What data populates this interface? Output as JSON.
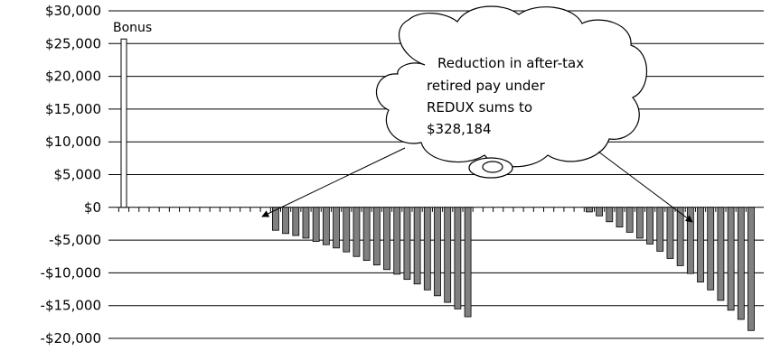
{
  "chart_data": {
    "type": "bar",
    "title": "",
    "xlabel": "",
    "ylabel": "",
    "ylim": [
      -20000,
      30000
    ],
    "y_tick_labels": [
      "$30,000",
      "$25,000",
      "$20,000",
      "$15,000",
      "$10,000",
      "$5,000",
      "$0",
      "-$5,000",
      "-$10,000",
      "-$15,000",
      "-$20,000"
    ],
    "y_tick_values": [
      30000,
      25000,
      20000,
      15000,
      10000,
      5000,
      0,
      -5000,
      -10000,
      -15000,
      -20000
    ],
    "grid": true,
    "bonus": {
      "label": "Bonus",
      "value": 25700,
      "index": 0
    },
    "values": [
      25700,
      0,
      0,
      0,
      0,
      0,
      0,
      0,
      0,
      0,
      0,
      0,
      0,
      0,
      0,
      -3500,
      -4000,
      -4300,
      -4700,
      -5200,
      -5700,
      -6200,
      -6800,
      -7500,
      -8100,
      -8800,
      -9500,
      -10200,
      -11000,
      -11700,
      -12600,
      -13500,
      -14500,
      -15500,
      -16700,
      0,
      0,
      0,
      0,
      0,
      0,
      0,
      0,
      0,
      0,
      0,
      -700,
      -1300,
      -2200,
      -3000,
      -3800,
      -4700,
      -5600,
      -6700,
      -7800,
      -8900,
      -10100,
      -11400,
      -12600,
      -14200,
      -15700,
      -17100,
      -18800
    ],
    "series": [
      {
        "name": "",
        "color": "#808080"
      }
    ],
    "annotation": {
      "lines": [
        "Reduction in after-tax",
        "retired pay under",
        "REDUX sums to",
        "$328,184"
      ]
    }
  }
}
